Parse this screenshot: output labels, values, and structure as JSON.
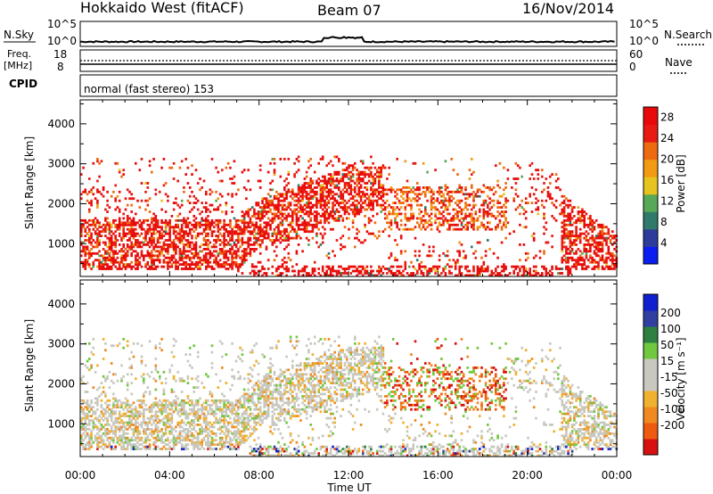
{
  "header": {
    "station": "Hokkaido West (fitACF)",
    "beam": "Beam 07",
    "date": "16/Nov/2014"
  },
  "strips": {
    "nsky_label": "N.Sky",
    "nsky_ticks": [
      "10^5",
      "10^0"
    ],
    "nsearch_label": "N.Search",
    "freq_label_top": "Freq.",
    "freq_label_unit": "[MHz]",
    "freq_ticks": [
      "18",
      "8"
    ],
    "nave_label": "Nave",
    "nave_ticks": [
      "60",
      "0"
    ],
    "cpid_label": "CPID",
    "cpid_text": "normal (fast stereo) 153"
  },
  "colors": {
    "power_scale": [
      "#0a1ef0",
      "#2d3c9b",
      "#2f7a6a",
      "#57a857",
      "#e6c31e",
      "#f29a14",
      "#ee6a10",
      "#e81a12",
      "#e80a0a"
    ],
    "velocity_scale": [
      "#d81010",
      "#ee5a10",
      "#f08a20",
      "#f0b030",
      "#c8c8c0",
      "#c8c8c0",
      "#70c840",
      "#2d8040",
      "#3040a0",
      "#1020d0"
    ]
  },
  "chart_data": [
    {
      "type": "heatmap",
      "name": "power",
      "title": "",
      "xlabel": "Time UT",
      "ylabel": "Slant Range [km]",
      "xlim_hours": [
        0,
        24
      ],
      "ylim_km": [
        180,
        4600
      ],
      "x_ticks": [
        "00:00",
        "04:00",
        "08:00",
        "12:00",
        "16:00",
        "20:00",
        "00:00"
      ],
      "y_ticks": [
        "1000",
        "2000",
        "3000",
        "4000"
      ],
      "colorbar_label": "Power [dB]",
      "colorbar_ticks": [
        "4",
        "8",
        "12",
        "16",
        "20",
        "24",
        "28"
      ],
      "colorbar_range": [
        0,
        30
      ]
    },
    {
      "type": "heatmap",
      "name": "velocity",
      "title": "",
      "xlabel": "Time UT",
      "ylabel": "Slant Range [km]",
      "xlim_hours": [
        0,
        24
      ],
      "ylim_km": [
        180,
        4600
      ],
      "x_ticks": [
        "00:00",
        "04:00",
        "08:00",
        "12:00",
        "16:00",
        "20:00",
        "00:00"
      ],
      "y_ticks": [
        "1000",
        "2000",
        "3000",
        "4000"
      ],
      "colorbar_label": "Velocity [m s⁻¹]",
      "colorbar_ticks": [
        "200",
        "100",
        "50",
        "15",
        "-15",
        "-50",
        "-100",
        "-200"
      ],
      "colorbar_range": [
        -250,
        250
      ]
    }
  ]
}
